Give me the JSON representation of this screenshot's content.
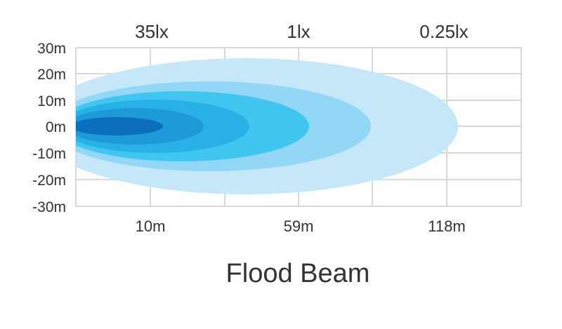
{
  "title": "Flood Beam",
  "lux_labels": [
    "35lx",
    "1lx",
    "0.25lx"
  ],
  "y_labels": [
    "30m",
    "20m",
    "10m",
    "0m",
    "-10m",
    "-20m",
    "-30m"
  ],
  "distance_labels": [
    "10m",
    "59m",
    "118m"
  ],
  "zone_colors": [
    "#c6e7f8",
    "#92d7f3",
    "#42c6f0",
    "#29b0e5",
    "#1e9ad8",
    "#0a6fbd"
  ],
  "grid_color": "#d9d9d9"
}
